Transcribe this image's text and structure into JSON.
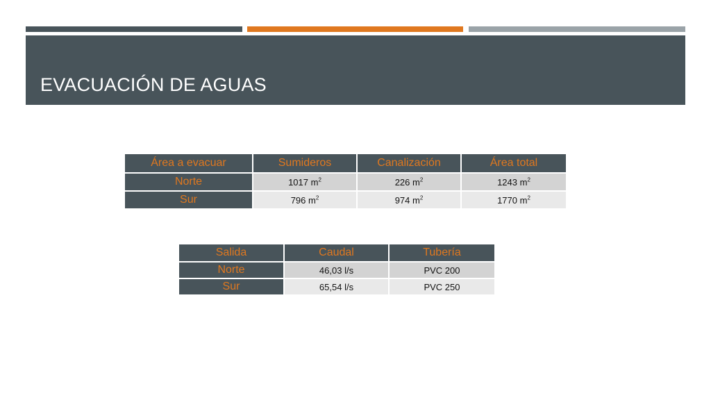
{
  "slide": {
    "title": "EVACUACIÓN DE AGUAS",
    "colors": {
      "dark": "#48545a",
      "accent": "#e0781f",
      "light": "#9aa3a8"
    }
  },
  "table_area": {
    "headers": [
      "Área a evacuar",
      "Sumideros",
      "Canalización",
      "Área total"
    ],
    "rows": [
      {
        "label": "Norte",
        "sumideros": "1017 m",
        "canalizacion": "226 m",
        "area_total": "1243 m"
      },
      {
        "label": "Sur",
        "sumideros": "796 m",
        "canalizacion": "974 m",
        "area_total": "1770 m"
      }
    ],
    "unit_exponent": "2"
  },
  "table_salida": {
    "headers": [
      "Salida",
      "Caudal",
      "Tubería"
    ],
    "rows": [
      {
        "label": "Norte",
        "caudal": "46,03 l/s",
        "tuberia": "PVC 200"
      },
      {
        "label": "Sur",
        "caudal": "65,54 l/s",
        "tuberia": "PVC 250"
      }
    ]
  }
}
